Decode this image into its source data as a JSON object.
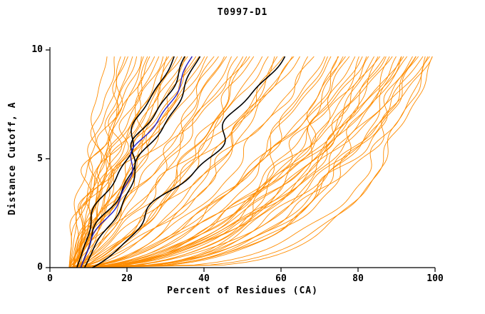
{
  "chart_data": {
    "type": "line",
    "title": "T0997-D1",
    "xlabel": "Percent of Residues (CA)",
    "ylabel": "Distance Cutoff, A",
    "xlim": [
      0,
      100
    ],
    "ylim": [
      0,
      10
    ],
    "x_ticks": [
      0,
      20,
      40,
      60,
      80,
      100
    ],
    "y_ticks": [
      0,
      5,
      10
    ],
    "y_top_end": 9.7,
    "grid": false,
    "legend": "none",
    "colors": {
      "model_curves": "#ff8c00",
      "reference_curves": "#000000",
      "highlight_curve": "#2222cc",
      "axis": "#000000",
      "background": "#ffffff"
    },
    "curve_format": [
      "x_start_percent",
      "x_percent_at_top_cutoff",
      "shape_exponent",
      "wiggle_amp",
      "wiggle_phase"
    ],
    "orange_curves": [
      [
        5,
        15,
        1.1,
        1.2,
        0.5
      ],
      [
        6,
        17,
        1.0,
        2.0,
        1.8
      ],
      [
        5,
        19,
        1.2,
        1.5,
        3.1
      ],
      [
        7,
        20,
        0.95,
        2.4,
        4.4
      ],
      [
        6,
        22,
        1.1,
        0.8,
        5.7
      ],
      [
        5,
        24,
        1.0,
        2.8,
        0.9
      ],
      [
        8,
        25,
        1.3,
        1.1,
        2.2
      ],
      [
        6,
        26,
        0.9,
        1.9,
        3.5
      ],
      [
        7,
        28,
        1.15,
        2.3,
        4.8
      ],
      [
        5,
        29,
        1.0,
        1.4,
        6.0
      ],
      [
        6,
        30,
        1.2,
        2.6,
        1.1
      ],
      [
        8,
        31,
        0.85,
        1.0,
        2.4
      ],
      [
        5,
        33,
        1.1,
        2.1,
        3.7
      ],
      [
        7,
        34,
        1.0,
        1.6,
        5.0
      ],
      [
        6,
        35,
        1.25,
        2.9,
        0.2
      ],
      [
        5,
        36,
        0.9,
        1.2,
        1.5
      ],
      [
        8,
        38,
        1.1,
        2.2,
        2.8
      ],
      [
        6,
        39,
        1.0,
        1.7,
        4.1
      ],
      [
        7,
        40,
        1.2,
        2.5,
        5.4
      ],
      [
        5,
        41,
        0.95,
        1.3,
        0.6
      ],
      [
        6,
        42,
        1.05,
        2.0,
        1.9
      ],
      [
        7,
        44,
        1.15,
        1.5,
        3.2
      ],
      [
        5,
        45,
        0.9,
        2.7,
        4.5
      ],
      [
        6,
        37,
        1.3,
        1.1,
        5.8
      ],
      [
        7,
        23,
        1.4,
        1.8,
        1.0
      ],
      [
        5,
        27,
        1.5,
        2.3,
        2.3
      ],
      [
        6,
        32,
        1.35,
        1.4,
        3.6
      ],
      [
        8,
        21,
        1.6,
        2.6,
        4.9
      ],
      [
        6,
        46,
        0.8,
        2.0,
        0.4
      ],
      [
        5,
        48,
        0.7,
        1.3,
        1.7
      ],
      [
        7,
        50,
        0.85,
        2.5,
        3.0
      ],
      [
        6,
        52,
        0.6,
        1.6,
        4.3
      ],
      [
        8,
        54,
        0.75,
        2.8,
        5.6
      ],
      [
        5,
        56,
        0.65,
        1.1,
        0.8
      ],
      [
        6,
        58,
        0.8,
        2.2,
        2.1
      ],
      [
        7,
        60,
        0.55,
        1.5,
        3.4
      ],
      [
        5,
        62,
        0.7,
        2.6,
        4.7
      ],
      [
        6,
        64,
        0.6,
        1.2,
        6.0
      ],
      [
        8,
        66,
        0.75,
        2.3,
        1.2
      ],
      [
        5,
        68,
        0.5,
        1.7,
        2.5
      ],
      [
        6,
        70,
        0.65,
        2.9,
        3.8
      ],
      [
        7,
        47,
        0.9,
        1.4,
        5.1
      ],
      [
        5,
        53,
        0.95,
        2.1,
        0.3
      ],
      [
        6,
        59,
        0.45,
        1.6,
        1.6
      ],
      [
        7,
        65,
        0.85,
        2.4,
        2.9
      ],
      [
        5,
        51,
        0.55,
        1.9,
        4.2
      ],
      [
        6,
        72,
        0.45,
        2.2,
        0.6
      ],
      [
        5,
        74,
        0.5,
        1.5,
        1.9
      ],
      [
        7,
        76,
        0.4,
        2.7,
        3.2
      ],
      [
        6,
        78,
        0.55,
        1.2,
        4.5
      ],
      [
        8,
        80,
        0.35,
        2.4,
        5.8
      ],
      [
        5,
        82,
        0.45,
        1.7,
        1.0
      ],
      [
        6,
        84,
        0.5,
        2.9,
        2.3
      ],
      [
        7,
        86,
        0.3,
        1.3,
        3.6
      ],
      [
        5,
        88,
        0.4,
        2.1,
        4.9
      ],
      [
        6,
        90,
        0.5,
        1.6,
        0.1
      ],
      [
        8,
        92,
        0.35,
        2.6,
        1.4
      ],
      [
        5,
        94,
        0.45,
        1.1,
        2.7
      ],
      [
        6,
        96,
        0.3,
        2.3,
        4.0
      ],
      [
        7,
        98,
        0.4,
        1.8,
        5.3
      ],
      [
        5,
        100,
        0.35,
        2.5,
        0.5
      ],
      [
        6,
        100,
        0.5,
        1.4,
        1.8
      ],
      [
        7,
        99,
        0.25,
        2.0,
        3.1
      ],
      [
        5,
        97,
        0.45,
        1.5,
        4.4
      ],
      [
        6,
        95,
        0.3,
        2.8,
        5.7
      ],
      [
        8,
        93,
        0.5,
        1.2,
        0.9
      ],
      [
        5,
        91,
        0.4,
        2.2,
        2.2
      ],
      [
        6,
        89,
        0.28,
        1.7,
        3.5
      ],
      [
        7,
        87,
        0.5,
        2.4,
        4.8
      ],
      [
        5,
        85,
        0.35,
        1.3,
        6.0
      ],
      [
        6,
        83,
        0.45,
        2.6,
        1.1
      ],
      [
        8,
        81,
        0.3,
        1.6,
        2.4
      ],
      [
        5,
        79,
        0.5,
        2.1,
        3.7
      ],
      [
        6,
        77,
        0.38,
        1.5,
        5.0
      ],
      [
        7,
        75,
        0.28,
        2.7,
        0.2
      ],
      [
        5,
        73,
        0.48,
        1.9,
        1.5
      ],
      [
        6,
        100,
        0.22,
        1.4,
        2.8
      ],
      [
        7,
        96,
        0.33,
        2.3,
        4.1
      ],
      [
        5,
        92,
        0.27,
        1.8,
        5.4
      ],
      [
        6,
        88,
        0.42,
        2.5,
        0.7
      ],
      [
        8,
        98,
        0.2,
        1.3,
        2.0
      ]
    ],
    "black_curves": [
      [
        7,
        33,
        1.15,
        1.6,
        1.2
      ],
      [
        8,
        36,
        1.05,
        2.0,
        2.6
      ],
      [
        9,
        40,
        1.0,
        1.4,
        4.0
      ],
      [
        11,
        62,
        0.85,
        2.6,
        0.8
      ]
    ],
    "blue_curves": [
      [
        8,
        38,
        1.05,
        1.8,
        3.3
      ]
    ]
  }
}
